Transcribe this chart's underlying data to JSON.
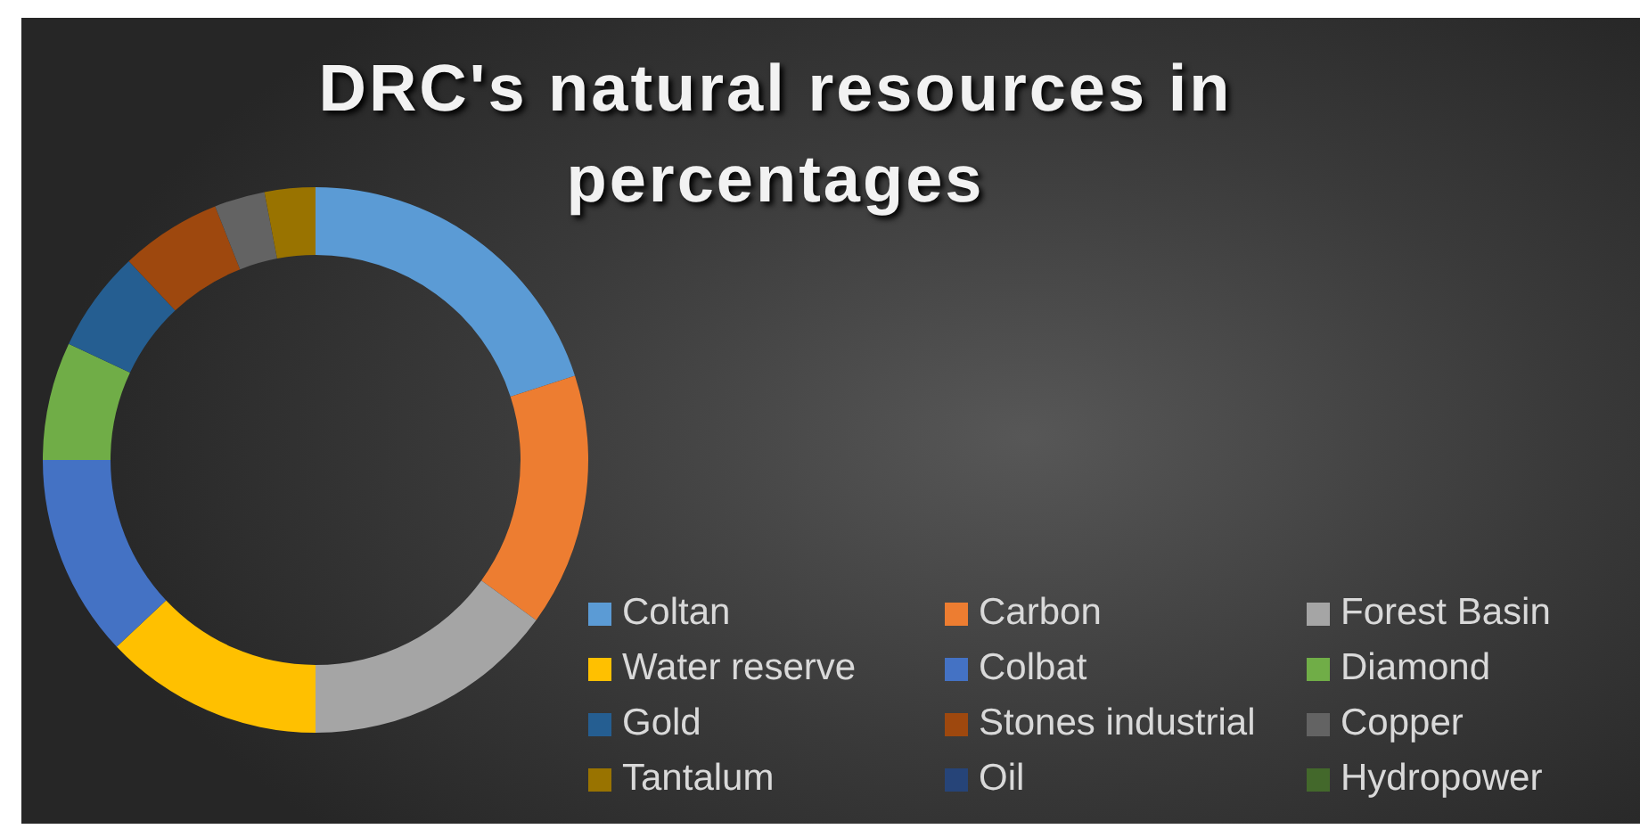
{
  "chart_data": {
    "type": "donut",
    "title": "DRC's natural resources in percentages",
    "categories": [
      "Coltan",
      "Carbon",
      "Forest Basin",
      "Water reserve",
      "Colbat",
      "Diamond",
      "Gold",
      "Stones industrial",
      "Copper",
      "Tantalum",
      "Oil",
      "Hydropower"
    ],
    "values": [
      20,
      15,
      15,
      13,
      12,
      7,
      6,
      6,
      3,
      3,
      0,
      0
    ],
    "colors": [
      "#5b9bd5",
      "#ed7d31",
      "#a5a5a5",
      "#ffc000",
      "#4472c4",
      "#70ad47",
      "#255e91",
      "#9e480e",
      "#636363",
      "#997300",
      "#264478",
      "#43682b"
    ],
    "legend": "bottom right"
  }
}
